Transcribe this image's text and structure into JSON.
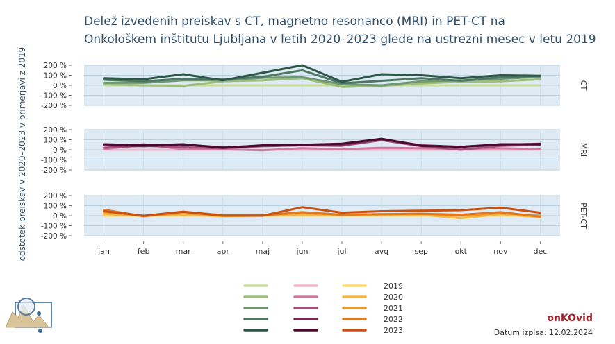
{
  "title_lines": [
    "Delež izvedenih preiskav s CT, magnetno resonanco (MRI) in PET-CT na",
    "Onkološkem inštitutu Ljubljana v letih 2020–2023 glede na ustrezni mesec v letu 2019"
  ],
  "brand": "onKOvid",
  "date_label": "Datum izpisa: 12.02.2024",
  "chart_data": {
    "type": "line",
    "title": "Delež izvedenih preiskav s CT, magnetno resonanco (MRI) in PET-CT na Onkološkem inštitutu Ljubljana v letih 2020–2023 glede na ustrezni mesec v letu 2019",
    "ylabel": "odstotek preiskav v 2020–2023 v primerjavi z 2019",
    "xlabel": "",
    "categories": [
      "jan",
      "feb",
      "mar",
      "apr",
      "maj",
      "jun",
      "jul",
      "avg",
      "sep",
      "okt",
      "nov",
      "dec"
    ],
    "ylim": [
      -200,
      200
    ],
    "y_ticks": [
      -200,
      -100,
      0,
      100,
      200
    ],
    "y_tick_labels": [
      "-200 %",
      "-100 %",
      "0 %",
      "100 %",
      "200 %"
    ],
    "grid": true,
    "legend_years": [
      "2019",
      "2020",
      "2021",
      "2022",
      "2023"
    ],
    "legend_position": "bottom",
    "panels": [
      {
        "name": "CT",
        "colors": [
          "#c8dc96",
          "#9ebd78",
          "#6f9870",
          "#4d7762",
          "#2c5646"
        ],
        "series": [
          {
            "name": "2019",
            "values": [
              0,
              0,
              0,
              0,
              0,
              0,
              0,
              0,
              0,
              0,
              0,
              0
            ]
          },
          {
            "name": "2020",
            "values": [
              10,
              0,
              -5,
              40,
              50,
              70,
              -15,
              -5,
              20,
              35,
              40,
              60
            ]
          },
          {
            "name": "2021",
            "values": [
              25,
              25,
              50,
              50,
              75,
              80,
              10,
              0,
              40,
              50,
              65,
              85
            ]
          },
          {
            "name": "2022",
            "values": [
              55,
              40,
              65,
              60,
              85,
              150,
              20,
              45,
              70,
              45,
              80,
              95
            ]
          },
          {
            "name": "2023",
            "values": [
              70,
              60,
              110,
              50,
              125,
              200,
              35,
              110,
              100,
              70,
              100,
              95
            ]
          }
        ]
      },
      {
        "name": "MRI",
        "colors": [
          "#f0b4cc",
          "#cc7aa0",
          "#a4507c",
          "#7a2a58",
          "#4a0a30"
        ],
        "series": [
          {
            "name": "2019",
            "values": [
              0,
              0,
              0,
              0,
              0,
              0,
              0,
              0,
              0,
              0,
              0,
              0
            ]
          },
          {
            "name": "2020",
            "values": [
              5,
              55,
              5,
              5,
              -5,
              15,
              5,
              20,
              15,
              10,
              15,
              5
            ]
          },
          {
            "name": "2021",
            "values": [
              20,
              40,
              25,
              15,
              35,
              45,
              40,
              95,
              35,
              0,
              40,
              50
            ]
          },
          {
            "name": "2022",
            "values": [
              45,
              35,
              50,
              25,
              40,
              50,
              50,
              105,
              45,
              30,
              50,
              60
            ]
          },
          {
            "name": "2023",
            "values": [
              55,
              45,
              55,
              20,
              45,
              50,
              60,
              110,
              40,
              30,
              55,
              55
            ]
          }
        ]
      },
      {
        "name": "PET-CT",
        "colors": [
          "#ffd866",
          "#f4b840",
          "#ec9a30",
          "#e07820",
          "#c85010"
        ],
        "series": [
          {
            "name": "2019",
            "values": [
              0,
              0,
              0,
              0,
              0,
              0,
              0,
              0,
              0,
              0,
              0,
              0
            ]
          },
          {
            "name": "2020",
            "values": [
              15,
              0,
              10,
              -5,
              0,
              10,
              5,
              10,
              10,
              -25,
              15,
              -15
            ]
          },
          {
            "name": "2021",
            "values": [
              35,
              -5,
              25,
              0,
              5,
              25,
              10,
              15,
              20,
              0,
              25,
              0
            ]
          },
          {
            "name": "2022",
            "values": [
              60,
              -5,
              40,
              5,
              5,
              35,
              10,
              15,
              20,
              10,
              35,
              -10
            ]
          },
          {
            "name": "2023",
            "values": [
              45,
              0,
              40,
              0,
              0,
              85,
              30,
              45,
              50,
              55,
              80,
              30
            ]
          }
        ]
      }
    ]
  }
}
